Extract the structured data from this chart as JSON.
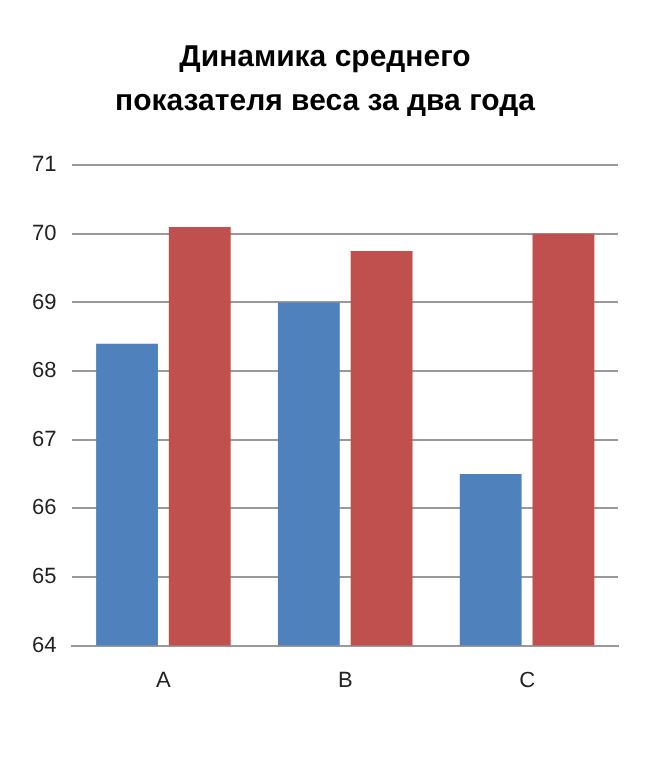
{
  "chart_data": {
    "type": "bar",
    "title": "Динамика среднего показателя веса за два года",
    "categories": [
      "A",
      "B",
      "C"
    ],
    "series": [
      {
        "color": "#4f81bd",
        "values": [
          68.4,
          69.0,
          66.5
        ]
      },
      {
        "color": "#c0504d",
        "values": [
          70.1,
          69.75,
          70.0
        ]
      }
    ],
    "ylim": [
      64,
      71
    ],
    "yticks": [
      64,
      65,
      66,
      67,
      68,
      69,
      70,
      71
    ],
    "grid": "y",
    "legend": false
  }
}
